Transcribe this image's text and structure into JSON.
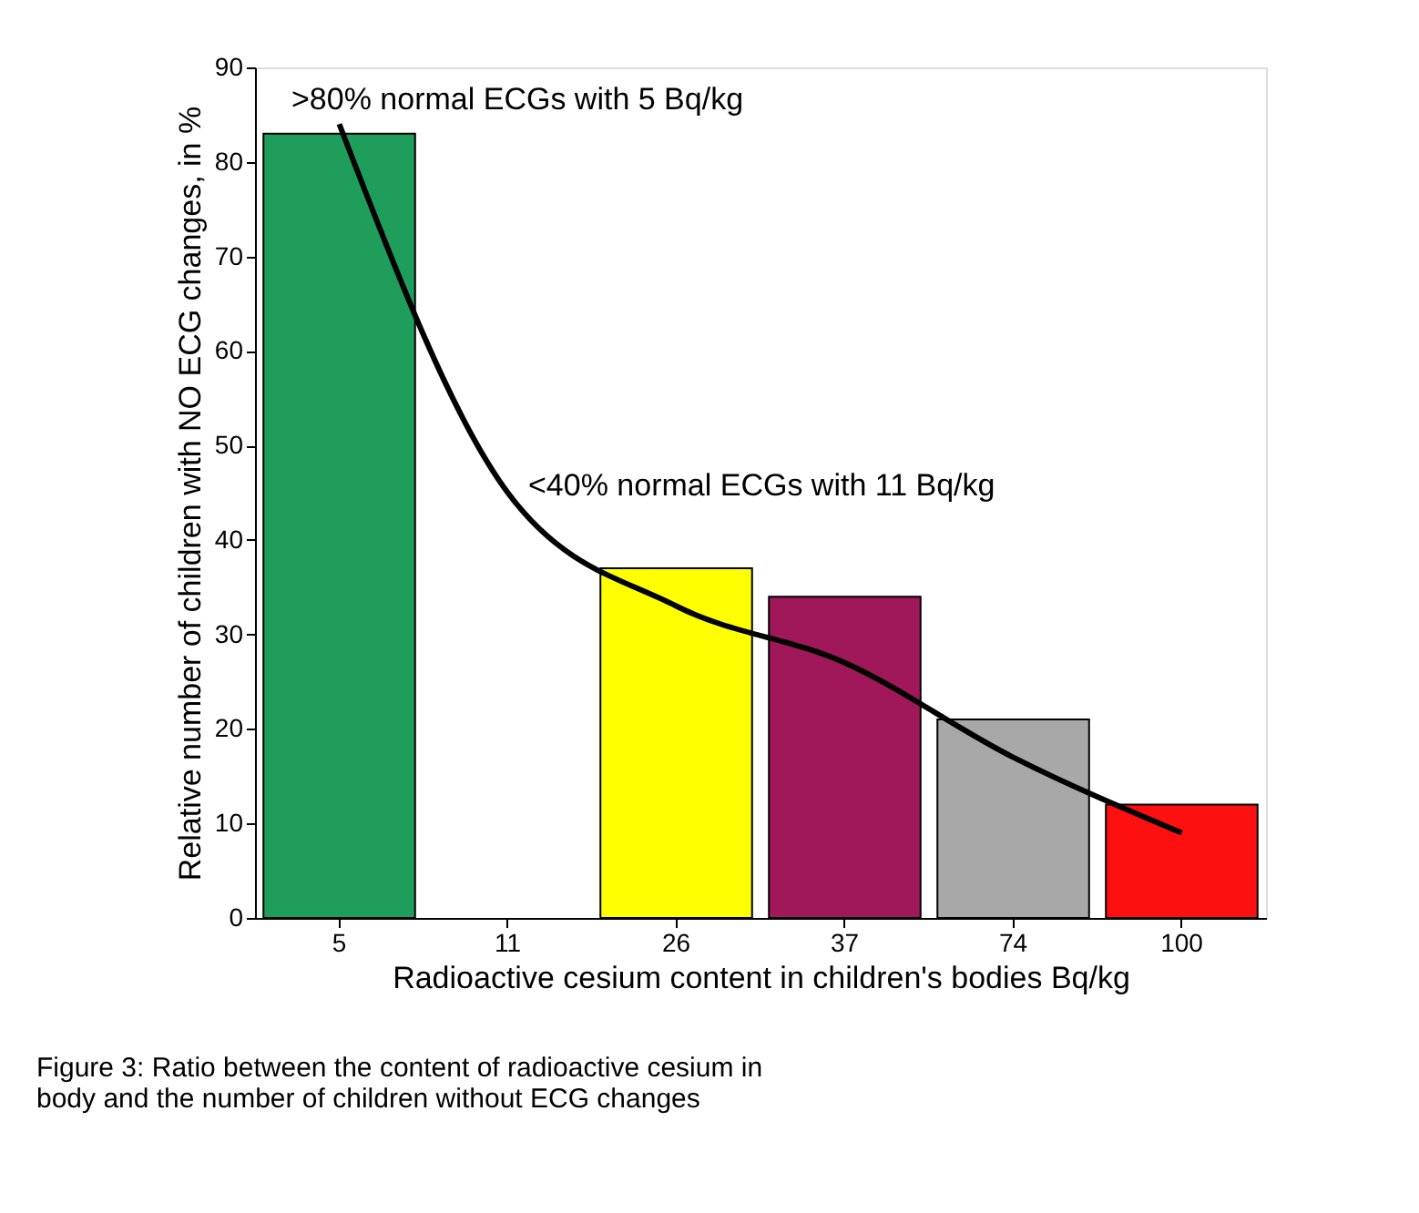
{
  "chart_data": {
    "type": "bar",
    "xlabel": "Radioactive cesium content in children's bodies Bq/kg",
    "ylabel": "Relative number of children with NO ECG changes, in %",
    "categories": [
      "5",
      "11",
      "26",
      "37",
      "74",
      "100"
    ],
    "series": [
      {
        "values": [
          83,
          null,
          37,
          34,
          21,
          12
        ],
        "colors": [
          "#1e9e5a",
          "#ffffff",
          "#ffff00",
          "#a0185a",
          "#a8a8a8",
          "#ff1010"
        ]
      },
      {
        "type": "line",
        "color": "#000000",
        "values": [
          84,
          45,
          33,
          27,
          17,
          9
        ]
      }
    ],
    "ylim": [
      0,
      90
    ],
    "yticks": [
      0,
      10,
      20,
      30,
      40,
      50,
      60,
      70,
      80,
      90
    ],
    "grid": false,
    "annotations": [
      ">80% normal ECGs with 5 Bq/kg",
      "<40% normal ECGs with 11 Bq/kg",
      "Figure 3: Ratio between the content of radioactive cesium in\nbody and the number of children without ECG changes"
    ]
  }
}
